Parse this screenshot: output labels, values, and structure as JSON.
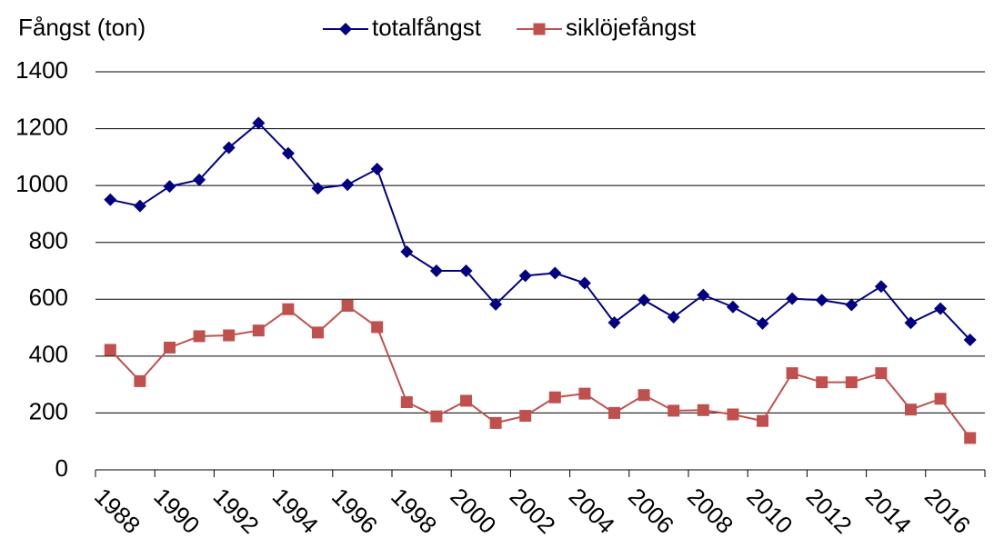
{
  "chart_data": {
    "type": "line",
    "y_label": "Fångst (ton)",
    "categories": [
      "1988",
      null,
      "1990",
      null,
      "1992",
      null,
      "1994",
      null,
      "1996",
      null,
      "1998",
      null,
      "2000",
      null,
      "2002",
      null,
      "2004",
      null,
      "2006",
      null,
      "2008",
      null,
      "2010",
      null,
      "2012",
      null,
      "2014",
      null,
      "2016",
      null
    ],
    "series": [
      {
        "name": "totalfångst",
        "color": "#000080",
        "marker": "diamond",
        "values": [
          950,
          928,
          997,
          1020,
          1133,
          1220,
          1113,
          990,
          1003,
          1058,
          767,
          700,
          700,
          582,
          683,
          692,
          657,
          518,
          597,
          537,
          615,
          573,
          515,
          602,
          597,
          580,
          645,
          517,
          567,
          457
        ]
      },
      {
        "name": "siklöjefångst",
        "color": "#c0504d",
        "marker": "square",
        "values": [
          422,
          312,
          430,
          470,
          473,
          490,
          565,
          483,
          577,
          502,
          238,
          188,
          243,
          165,
          190,
          255,
          268,
          200,
          263,
          208,
          210,
          195,
          172,
          340,
          308,
          308,
          340,
          212,
          250,
          112
        ]
      }
    ],
    "ylim": [
      0,
      1400
    ],
    "yticks": [
      0,
      200,
      400,
      600,
      800,
      1000,
      1200,
      1400
    ],
    "grid": true,
    "legend": "top"
  }
}
